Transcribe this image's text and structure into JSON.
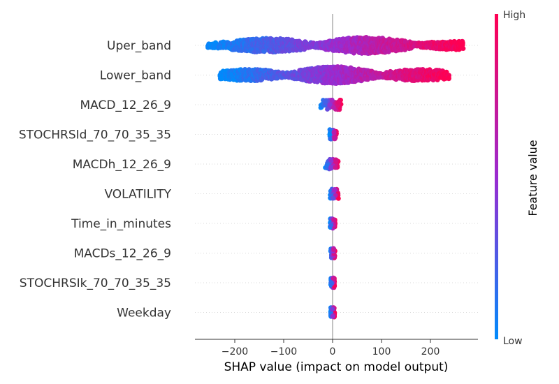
{
  "chart_data": {
    "type": "beeswarm",
    "title": "",
    "xlabel": "SHAP value (impact on model output)",
    "ylabel": "",
    "xlim": [
      -280,
      295
    ],
    "xticks": [
      -200,
      -100,
      0,
      100,
      200
    ],
    "xtick_labels": [
      "−200",
      "−100",
      "0",
      "100",
      "200"
    ],
    "features": [
      "Uper_band",
      "Lower_band",
      "MACD_12_26_9",
      "STOCHRSId_70_70_35_35",
      "MACDh_12_26_9",
      "VOLATILITY",
      "Time_in_minutes",
      "MACDs_12_26_9",
      "STOCHRSIk_70_70_35_35",
      "Weekday"
    ],
    "feature_shap_ranges": [
      [
        -255,
        268
      ],
      [
        -230,
        238
      ],
      [
        -25,
        18
      ],
      [
        -6,
        8
      ],
      [
        -15,
        12
      ],
      [
        -5,
        12
      ],
      [
        -5,
        5
      ],
      [
        -4,
        5
      ],
      [
        -4,
        4
      ],
      [
        -4,
        4
      ]
    ],
    "colorbar": {
      "label": "Feature value",
      "high_label": "High",
      "low_label": "Low",
      "low_color": "#008bfb",
      "mid_color": "#9a2bd0",
      "high_color": "#ff0052"
    },
    "zero_line_color": "#999999",
    "grid": false,
    "legend": "colorbar-right"
  }
}
